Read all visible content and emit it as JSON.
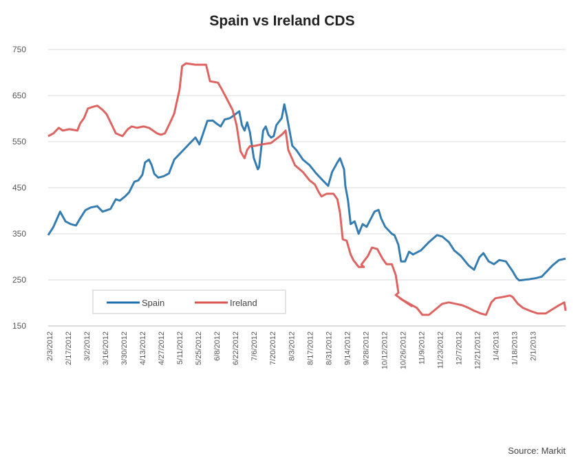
{
  "chart_data": {
    "type": "line",
    "title": "Spain vs Ireland CDS",
    "xlabel": "",
    "ylabel": "",
    "ylim": [
      150,
      750
    ],
    "yticks": [
      150,
      250,
      350,
      450,
      550,
      650,
      750
    ],
    "x_unit": "days since 2/3/2012",
    "xlim": [
      0,
      390
    ],
    "xticks": [
      {
        "day": 0,
        "label": "2/3/2012"
      },
      {
        "day": 14,
        "label": "2/17/2012"
      },
      {
        "day": 28,
        "label": "3/2/2012"
      },
      {
        "day": 42,
        "label": "3/16/2012"
      },
      {
        "day": 56,
        "label": "3/30/2012"
      },
      {
        "day": 70,
        "label": "4/13/2012"
      },
      {
        "day": 84,
        "label": "4/27/2012"
      },
      {
        "day": 98,
        "label": "5/11/2012"
      },
      {
        "day": 112,
        "label": "5/25/2012"
      },
      {
        "day": 126,
        "label": "6/8/2012"
      },
      {
        "day": 140,
        "label": "6/22/2012"
      },
      {
        "day": 154,
        "label": "7/6/2012"
      },
      {
        "day": 168,
        "label": "7/20/2012"
      },
      {
        "day": 182,
        "label": "8/3/2012"
      },
      {
        "day": 196,
        "label": "8/17/2012"
      },
      {
        "day": 210,
        "label": "8/31/2012"
      },
      {
        "day": 224,
        "label": "9/14/2012"
      },
      {
        "day": 238,
        "label": "9/28/2012"
      },
      {
        "day": 252,
        "label": "10/12/2012"
      },
      {
        "day": 266,
        "label": "10/26/2012"
      },
      {
        "day": 280,
        "label": "11/9/2012"
      },
      {
        "day": 294,
        "label": "11/23/2012"
      },
      {
        "day": 308,
        "label": "12/7/2012"
      },
      {
        "day": 322,
        "label": "12/21/2012"
      },
      {
        "day": 336,
        "label": "1/4/2013"
      },
      {
        "day": 350,
        "label": "1/18/2013"
      },
      {
        "day": 364,
        "label": "2/1/2013"
      }
    ],
    "grid": true,
    "legend": {
      "placement": "bottom-left",
      "entries": [
        "Spain",
        "Ireland"
      ]
    },
    "series": [
      {
        "name": "Spain",
        "color": "#1f6fa8",
        "points": [
          [
            0,
            347
          ],
          [
            4,
            365
          ],
          [
            9,
            398
          ],
          [
            13,
            377
          ],
          [
            17,
            371
          ],
          [
            21,
            368
          ],
          [
            24,
            383
          ],
          [
            28,
            401
          ],
          [
            32,
            407
          ],
          [
            37,
            410
          ],
          [
            41,
            398
          ],
          [
            47,
            404
          ],
          [
            51,
            425
          ],
          [
            54,
            422
          ],
          [
            58,
            431
          ],
          [
            61,
            440
          ],
          [
            65,
            463
          ],
          [
            68,
            466
          ],
          [
            71,
            478
          ],
          [
            73,
            505
          ],
          [
            76,
            511
          ],
          [
            78,
            499
          ],
          [
            80,
            480
          ],
          [
            83,
            472
          ],
          [
            87,
            475
          ],
          [
            91,
            481
          ],
          [
            95,
            511
          ],
          [
            104,
            538
          ],
          [
            108,
            550
          ],
          [
            111,
            559
          ],
          [
            114,
            544
          ],
          [
            120,
            595
          ],
          [
            124,
            596
          ],
          [
            127,
            589
          ],
          [
            130,
            583
          ],
          [
            133,
            598
          ],
          [
            137,
            601
          ],
          [
            140,
            607
          ],
          [
            144,
            616
          ],
          [
            146,
            586
          ],
          [
            148,
            574
          ],
          [
            150,
            592
          ],
          [
            152,
            571
          ],
          [
            155,
            514
          ],
          [
            158,
            490
          ],
          [
            159,
            495
          ],
          [
            162,
            574
          ],
          [
            164,
            583
          ],
          [
            166,
            565
          ],
          [
            168,
            559
          ],
          [
            170,
            562
          ],
          [
            172,
            586
          ],
          [
            176,
            601
          ],
          [
            178,
            631
          ],
          [
            180,
            604
          ],
          [
            184,
            541
          ],
          [
            187,
            532
          ],
          [
            192,
            511
          ],
          [
            197,
            499
          ],
          [
            202,
            481
          ],
          [
            207,
            466
          ],
          [
            211,
            454
          ],
          [
            214,
            484
          ],
          [
            218,
            505
          ],
          [
            220,
            514
          ],
          [
            223,
            490
          ],
          [
            224,
            454
          ],
          [
            226,
            422
          ],
          [
            228,
            371
          ],
          [
            231,
            377
          ],
          [
            234,
            350
          ],
          [
            237,
            371
          ],
          [
            240,
            365
          ],
          [
            246,
            398
          ],
          [
            249,
            402
          ],
          [
            251,
            383
          ],
          [
            254,
            365
          ],
          [
            259,
            350
          ],
          [
            261,
            347
          ],
          [
            264,
            326
          ],
          [
            266,
            290
          ],
          [
            269,
            290
          ],
          [
            272,
            311
          ],
          [
            275,
            305
          ],
          [
            281,
            314
          ],
          [
            287,
            332
          ],
          [
            293,
            347
          ],
          [
            297,
            344
          ],
          [
            302,
            332
          ],
          [
            306,
            314
          ],
          [
            311,
            302
          ],
          [
            317,
            281
          ],
          [
            321,
            272
          ],
          [
            325,
            299
          ],
          [
            328,
            308
          ],
          [
            332,
            290
          ],
          [
            336,
            284
          ],
          [
            340,
            293
          ],
          [
            345,
            290
          ],
          [
            350,
            269
          ],
          [
            353,
            254
          ],
          [
            355,
            249
          ],
          [
            362,
            251
          ],
          [
            368,
            254
          ],
          [
            372,
            257
          ],
          [
            376,
            269
          ],
          [
            380,
            281
          ],
          [
            385,
            293
          ],
          [
            390,
            296
          ]
        ]
      },
      {
        "name": "Ireland",
        "color": "#d9534f",
        "points": [
          [
            0,
            562
          ],
          [
            4,
            568
          ],
          [
            8,
            580
          ],
          [
            11,
            574
          ],
          [
            16,
            577
          ],
          [
            22,
            574
          ],
          [
            24,
            589
          ],
          [
            27,
            601
          ],
          [
            30,
            622
          ],
          [
            33,
            625
          ],
          [
            37,
            628
          ],
          [
            41,
            619
          ],
          [
            44,
            610
          ],
          [
            48,
            586
          ],
          [
            51,
            568
          ],
          [
            56,
            562
          ],
          [
            60,
            577
          ],
          [
            63,
            583
          ],
          [
            67,
            580
          ],
          [
            72,
            583
          ],
          [
            76,
            580
          ],
          [
            79,
            574
          ],
          [
            82,
            568
          ],
          [
            85,
            565
          ],
          [
            88,
            568
          ],
          [
            92,
            592
          ],
          [
            95,
            611
          ],
          [
            99,
            663
          ],
          [
            101,
            714
          ],
          [
            104,
            720
          ],
          [
            111,
            717
          ],
          [
            119,
            717
          ],
          [
            122,
            681
          ],
          [
            128,
            678
          ],
          [
            131,
            663
          ],
          [
            135,
            641
          ],
          [
            139,
            619
          ],
          [
            142,
            586
          ],
          [
            145,
            529
          ],
          [
            148,
            514
          ],
          [
            150,
            532
          ],
          [
            152,
            540
          ],
          [
            156,
            541
          ],
          [
            161,
            544
          ],
          [
            168,
            547
          ],
          [
            176,
            565
          ],
          [
            179,
            574
          ],
          [
            181,
            532
          ],
          [
            186,
            499
          ],
          [
            192,
            484
          ],
          [
            197,
            466
          ],
          [
            201,
            457
          ],
          [
            204,
            440
          ],
          [
            206,
            431
          ],
          [
            210,
            437
          ],
          [
            215,
            437
          ],
          [
            218,
            425
          ],
          [
            220,
            395
          ],
          [
            222,
            338
          ],
          [
            225,
            335
          ],
          [
            228,
            305
          ],
          [
            230,
            293
          ],
          [
            234,
            278
          ],
          [
            238,
            278
          ],
          [
            236,
            283
          ],
          [
            241,
            302
          ],
          [
            244,
            320
          ],
          [
            248,
            317
          ],
          [
            252,
            296
          ],
          [
            255,
            284
          ],
          [
            259,
            284
          ],
          [
            262,
            260
          ],
          [
            264,
            222
          ],
          [
            262,
            217
          ],
          [
            274,
            193
          ],
          [
            265,
            210
          ],
          [
            278,
            189
          ],
          [
            282,
            174
          ],
          [
            287,
            174
          ],
          [
            292,
            186
          ],
          [
            297,
            198
          ],
          [
            302,
            201
          ],
          [
            307,
            198
          ],
          [
            312,
            195
          ],
          [
            317,
            189
          ],
          [
            321,
            183
          ],
          [
            326,
            177
          ],
          [
            330,
            174
          ],
          [
            334,
            201
          ],
          [
            337,
            210
          ],
          [
            343,
            213
          ],
          [
            348,
            216
          ],
          [
            350,
            213
          ],
          [
            354,
            198
          ],
          [
            358,
            189
          ],
          [
            363,
            183
          ],
          [
            369,
            177
          ],
          [
            375,
            177
          ],
          [
            380,
            186
          ],
          [
            385,
            195
          ],
          [
            389,
            201
          ],
          [
            390,
            183
          ]
        ]
      }
    ]
  },
  "source_note": "Source: Markit"
}
